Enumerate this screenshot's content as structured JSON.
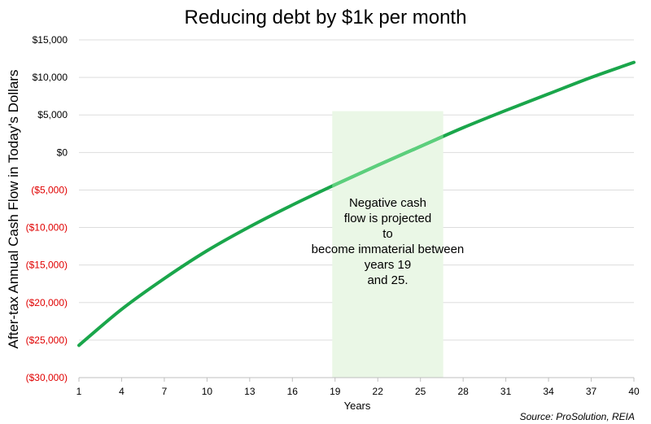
{
  "chart_data": {
    "type": "line",
    "title": "Reducing debt by $1k per month",
    "xlabel": "Years",
    "ylabel": "After-tax Annual Cash Flow in Today's Dollars",
    "source": "Source: ProSolution, REIA",
    "xlim": [
      1,
      40
    ],
    "ylim": [
      -30000,
      15000
    ],
    "x_ticks": [
      1,
      4,
      7,
      10,
      13,
      16,
      19,
      22,
      25,
      28,
      31,
      34,
      37,
      40
    ],
    "y_ticks": [
      {
        "value": 15000,
        "label": "$15,000"
      },
      {
        "value": 10000,
        "label": "$10,000"
      },
      {
        "value": 5000,
        "label": "$5,000"
      },
      {
        "value": 0,
        "label": "$0"
      },
      {
        "value": -5000,
        "label": "($5,000)"
      },
      {
        "value": -10000,
        "label": "($10,000)"
      },
      {
        "value": -15000,
        "label": "($15,000)"
      },
      {
        "value": -20000,
        "label": "($20,000)"
      },
      {
        "value": -25000,
        "label": "($25,000)"
      },
      {
        "value": -30000,
        "label": "($30,000)"
      }
    ],
    "grid": true,
    "legend": "none",
    "series": [
      {
        "x": [
          1,
          4,
          7,
          10,
          13,
          16,
          19,
          22,
          25,
          28,
          31,
          34,
          37,
          40
        ],
        "values": [
          -25700,
          -20900,
          -16800,
          -13100,
          -9900,
          -7000,
          -4300,
          -1700,
          800,
          3300,
          5600,
          7800,
          10000,
          12000
        ]
      }
    ],
    "highlight": {
      "x_range": [
        18.8,
        26.6
      ],
      "y_top": 5500,
      "text": "Negative cash flow is projected to become immaterial between years 19 and 25."
    },
    "colors": {
      "line": "#1aa64b",
      "line_highlight": "#5ccf7c",
      "highlight_fill": "#eaf7e6",
      "negative_label": "#e00000",
      "grid": "#dddddd"
    }
  }
}
